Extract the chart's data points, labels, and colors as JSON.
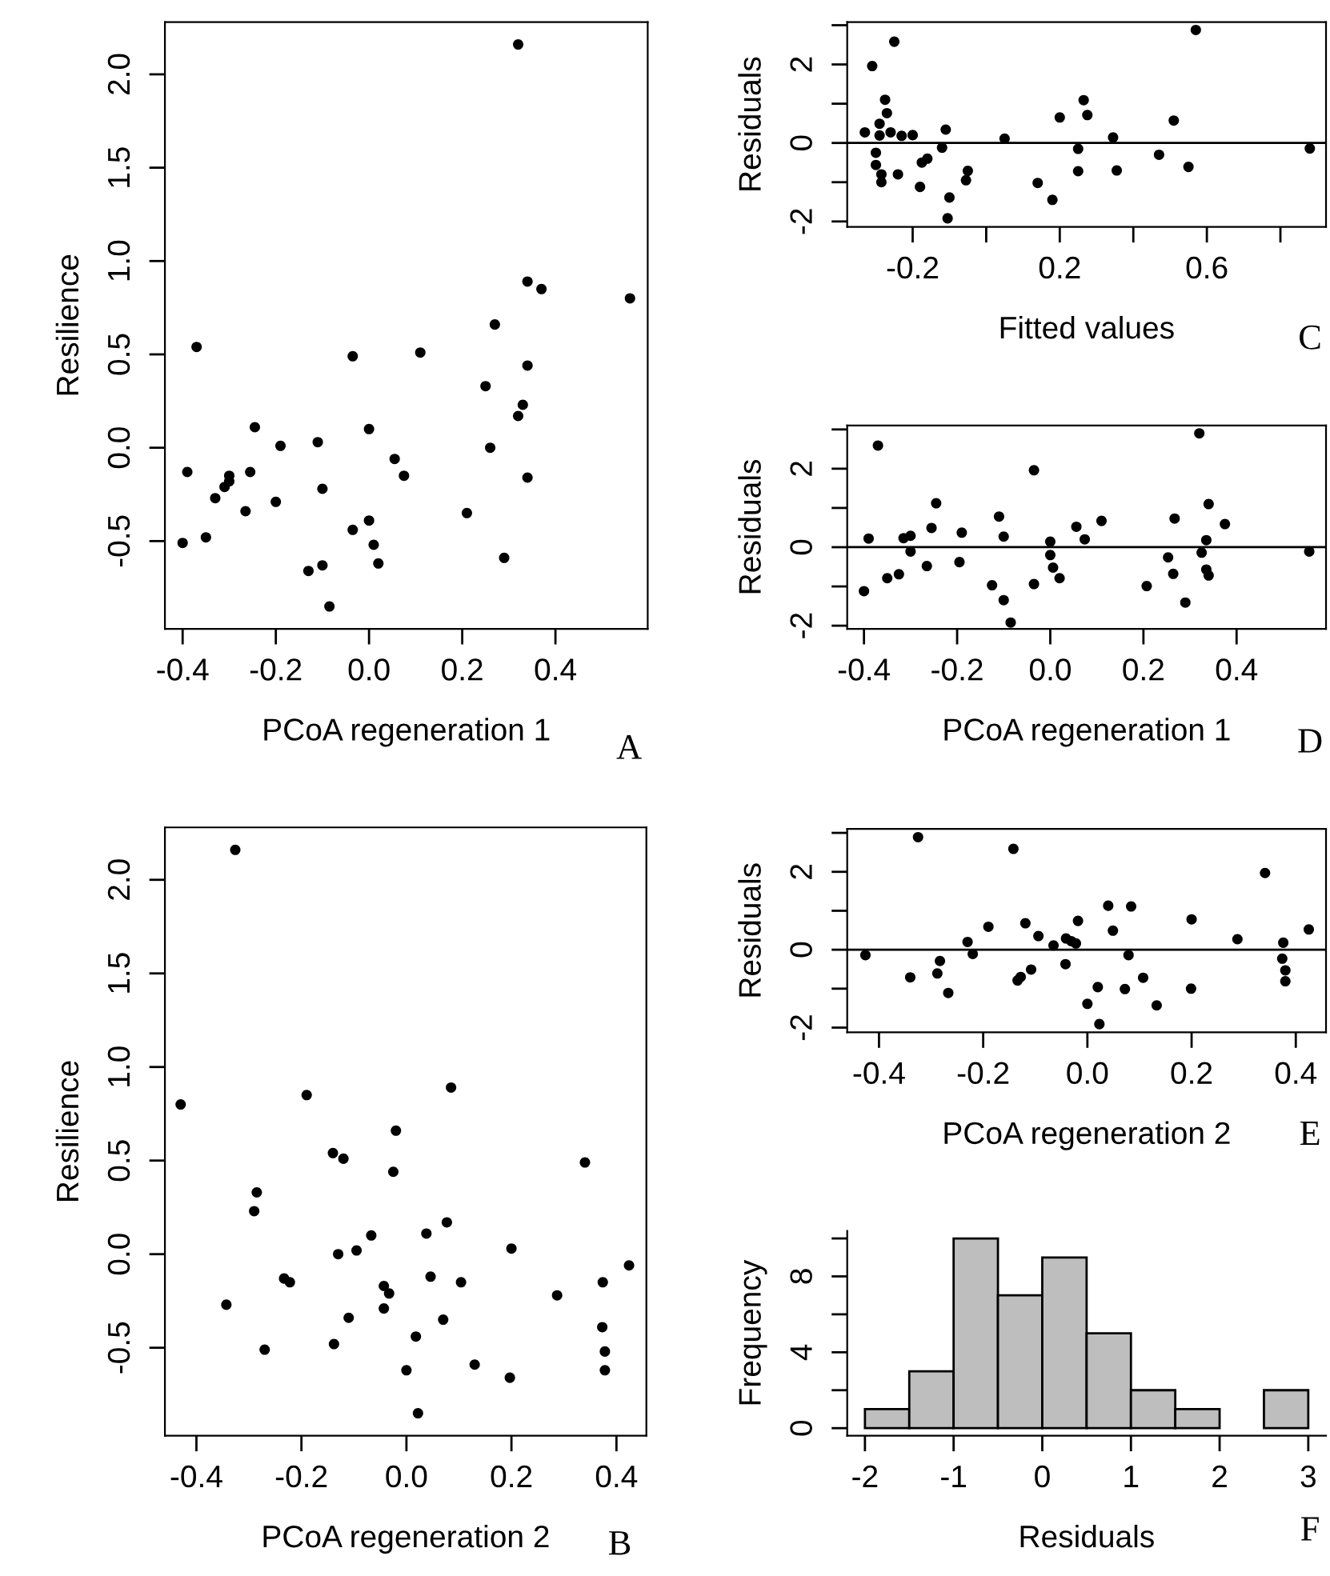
{
  "chart_data": [
    {
      "type": "scatter",
      "xlabel": "PCoA regeneration 1",
      "ylabel": "Resilience",
      "color": "#000000",
      "marker": "circle",
      "annotations": [
        "A"
      ],
      "x": [
        0.32,
        0.34,
        0.37,
        0.56,
        0.27,
        0.34,
        0.25,
        0.33,
        0.32,
        0.26,
        0.34,
        0.21,
        0.29,
        -0.37,
        -0.035,
        0.11,
        -0.39,
        -0.4,
        -0.35,
        -0.33,
        -0.31,
        -0.3,
        -0.3,
        -0.255,
        -0.245,
        -0.265,
        -0.2,
        -0.19,
        -0.11,
        -0.1,
        -0.13,
        -0.1,
        -0.085,
        -0.035,
        0.0,
        0.0,
        0.01,
        0.02,
        0.055,
        0.075
      ],
      "values": [
        2.16,
        0.89,
        0.85,
        0.8,
        0.66,
        0.44,
        0.33,
        0.23,
        0.17,
        0.0,
        -0.16,
        -0.35,
        -0.59,
        0.54,
        0.49,
        0.51,
        -0.13,
        -0.51,
        -0.48,
        -0.27,
        -0.21,
        -0.18,
        -0.15,
        -0.13,
        0.11,
        -0.34,
        -0.29,
        0.01,
        0.03,
        -0.22,
        -0.66,
        -0.63,
        -0.85,
        -0.44,
        -0.39,
        0.1,
        -0.52,
        -0.62,
        -0.06,
        -0.15
      ],
      "xlim": [
        -0.438,
        0.598
      ],
      "ylim": [
        -0.97,
        2.28
      ],
      "xticks": [
        -0.4,
        -0.2,
        {
          "value": 0,
          "label": "0.0"
        },
        0.2,
        0.4
      ],
      "yticks": [
        -0.5,
        {
          "value": 0,
          "label": "0.0"
        },
        0.5,
        {
          "value": 1,
          "label": "1.0"
        },
        1.5,
        {
          "value": 2,
          "label": "2.0"
        }
      ]
    },
    {
      "type": "scatter",
      "xlabel": "PCoA regeneration 2",
      "ylabel": "Resilience",
      "color": "#000000",
      "marker": "circle",
      "annotations": [
        "B"
      ],
      "x": [
        -0.326,
        -0.43,
        -0.19,
        0.085,
        -0.02,
        -0.14,
        -0.12,
        -0.025,
        0.34,
        -0.285,
        -0.29,
        0.077,
        -0.067,
        0.038,
        -0.13,
        -0.095,
        0.2,
        0.424,
        -0.233,
        -0.222,
        -0.043,
        -0.033,
        0.046,
        0.104,
        0.374,
        0.287,
        -0.343,
        -0.043,
        -0.11,
        0.07,
        0.373,
        -0.27,
        -0.138,
        0.018,
        0.378,
        0.13,
        0.0,
        0.197,
        0.378,
        0.022
      ],
      "values": [
        2.16,
        0.8,
        0.85,
        0.89,
        0.66,
        0.54,
        0.51,
        0.44,
        0.49,
        0.33,
        0.23,
        0.17,
        0.1,
        0.11,
        0.0,
        0.02,
        0.03,
        -0.06,
        -0.13,
        -0.15,
        -0.17,
        -0.21,
        -0.12,
        -0.15,
        -0.15,
        -0.22,
        -0.27,
        -0.29,
        -0.34,
        -0.35,
        -0.39,
        -0.51,
        -0.48,
        -0.44,
        -0.52,
        -0.59,
        -0.62,
        -0.66,
        -0.62,
        -0.85
      ],
      "xlim": [
        -0.46,
        0.457
      ],
      "ylim": [
        -0.97,
        2.28
      ],
      "xticks": [
        -0.4,
        -0.2,
        {
          "value": 0,
          "label": "0.0"
        },
        0.2,
        0.4
      ],
      "yticks": [
        -0.5,
        {
          "value": 0,
          "label": "0.0"
        },
        0.5,
        {
          "value": 1,
          "label": "1.0"
        },
        1.5,
        {
          "value": 2,
          "label": "2.0"
        }
      ]
    },
    {
      "type": "scatter",
      "xlabel": "Fitted values",
      "ylabel": "Residuals",
      "color": "#000000",
      "marker": "circle",
      "annotations": [
        "C"
      ],
      "ref_lines": [
        {
          "axis": "y",
          "value": 0,
          "label": null,
          "color": "#000000"
        }
      ],
      "x": [
        -0.33,
        -0.31,
        -0.25,
        -0.3,
        -0.3,
        -0.29,
        -0.285,
        -0.285,
        -0.29,
        -0.275,
        -0.27,
        -0.26,
        -0.23,
        -0.24,
        -0.2,
        -0.18,
        -0.175,
        -0.16,
        -0.12,
        -0.11,
        -0.1,
        -0.105,
        -0.055,
        -0.05,
        0.05,
        0.14,
        0.18,
        0.2,
        0.25,
        0.25,
        0.265,
        0.275,
        0.345,
        0.355,
        0.47,
        0.51,
        0.55,
        0.57,
        0.88
      ],
      "values": [
        0.27,
        1.96,
        2.58,
        -0.25,
        -0.56,
        0.49,
        -0.8,
        -1.0,
        0.19,
        1.1,
        0.76,
        0.27,
        0.18,
        -0.8,
        0.2,
        -1.12,
        -0.5,
        -0.4,
        -0.12,
        0.34,
        -1.39,
        -1.92,
        -0.95,
        -0.71,
        0.11,
        -1.02,
        -1.45,
        0.65,
        -0.15,
        -0.72,
        1.09,
        0.71,
        0.14,
        -0.7,
        -0.3,
        0.57,
        -0.61,
        2.88,
        -0.14
      ],
      "xlim": [
        -0.378,
        0.924
      ],
      "ylim": [
        -2.14,
        3.08
      ],
      "xticks": [
        -0.2,
        {
          "value": 0,
          "label": null
        },
        0.2,
        {
          "value": 0.4,
          "label": null
        },
        0.6,
        {
          "value": 0.8,
          "label": null
        }
      ],
      "yticks": [
        -2,
        {
          "value": -1,
          "label": null
        },
        0,
        {
          "value": 1,
          "label": null
        },
        2,
        {
          "value": 3,
          "label": null
        }
      ]
    },
    {
      "type": "scatter",
      "xlabel": "PCoA regeneration 1",
      "ylabel": "Residuals",
      "color": "#000000",
      "marker": "circle",
      "annotations": [
        "D"
      ],
      "ref_lines": [
        {
          "axis": "y",
          "value": 0,
          "label": null,
          "color": "#000000"
        }
      ],
      "x": [
        -0.4,
        -0.39,
        -0.37,
        -0.35,
        -0.325,
        -0.315,
        -0.3,
        -0.3,
        -0.265,
        -0.255,
        -0.245,
        -0.195,
        -0.19,
        -0.125,
        -0.11,
        -0.1,
        -0.1,
        -0.085,
        -0.035,
        -0.035,
        0.0,
        0.0,
        0.006,
        0.02,
        0.056,
        0.074,
        0.11,
        0.207,
        0.253,
        0.264,
        0.267,
        0.29,
        0.32,
        0.325,
        0.335,
        0.335,
        0.34,
        0.34,
        0.375,
        0.556
      ],
      "values": [
        -1.12,
        0.22,
        2.59,
        -0.79,
        -0.69,
        0.23,
        0.29,
        -0.11,
        -0.48,
        0.49,
        1.12,
        -0.38,
        0.37,
        -0.97,
        0.78,
        0.27,
        -1.35,
        -1.92,
        1.96,
        -0.94,
        0.14,
        -0.2,
        -0.52,
        -0.79,
        0.52,
        0.2,
        0.67,
        -0.99,
        -0.26,
        -0.68,
        0.73,
        -1.41,
        2.9,
        -0.14,
        0.18,
        -0.57,
        -0.72,
        1.1,
        0.59,
        -0.11
      ],
      "xlim": [
        -0.436,
        0.592
      ],
      "ylim": [
        -2.08,
        3.1
      ],
      "xticks": [
        -0.4,
        -0.2,
        {
          "value": 0,
          "label": "0.0"
        },
        0.2,
        0.4
      ],
      "yticks": [
        -2,
        {
          "value": -1,
          "label": null
        },
        0,
        {
          "value": 1,
          "label": null
        },
        2,
        {
          "value": 3,
          "label": null
        }
      ]
    },
    {
      "type": "scatter",
      "xlabel": "PCoA regeneration 2",
      "ylabel": "Residuals",
      "color": "#000000",
      "marker": "circle",
      "annotations": [
        "E"
      ],
      "ref_lines": [
        {
          "axis": "y",
          "value": 0,
          "label": null,
          "color": "#000000"
        }
      ],
      "x": [
        -0.426,
        -0.325,
        -0.34,
        -0.288,
        -0.283,
        -0.267,
        -0.23,
        -0.22,
        -0.19,
        -0.142,
        -0.134,
        -0.128,
        -0.119,
        -0.108,
        -0.094,
        -0.065,
        -0.042,
        -0.041,
        -0.031,
        -0.022,
        -0.018,
        0.0,
        0.02,
        0.023,
        0.04,
        0.049,
        0.072,
        0.079,
        0.084,
        0.107,
        0.133,
        0.199,
        0.2,
        0.288,
        0.341,
        0.376,
        0.374,
        0.38,
        0.38,
        0.425
      ],
      "values": [
        -0.14,
        2.89,
        -0.71,
        -0.61,
        -0.29,
        -1.11,
        0.2,
        -0.11,
        0.59,
        2.59,
        -0.79,
        -0.7,
        0.68,
        -0.51,
        0.35,
        0.11,
        -0.37,
        0.29,
        0.22,
        0.16,
        0.74,
        -1.39,
        -0.96,
        -1.91,
        1.13,
        0.49,
        -1.01,
        -0.14,
        1.11,
        -0.72,
        -1.43,
        -1.0,
        0.78,
        0.27,
        1.97,
        0.18,
        -0.23,
        -0.53,
        -0.81,
        0.52
      ],
      "xlim": [
        -0.461,
        0.458
      ],
      "ylim": [
        -2.12,
        3.1
      ],
      "xticks": [
        -0.4,
        -0.2,
        {
          "value": 0,
          "label": "0.0"
        },
        0.2,
        0.4
      ],
      "yticks": [
        -2,
        {
          "value": -1,
          "label": null
        },
        0,
        {
          "value": 1,
          "label": null
        },
        2,
        {
          "value": 3,
          "label": null
        }
      ]
    },
    {
      "type": "histogram",
      "xlabel": "Residuals",
      "ylabel": "Frequency",
      "color": "#bebebe",
      "annotations": [
        "F"
      ],
      "bins": [
        -2,
        -1.5,
        -1,
        -0.5,
        0,
        0.5,
        1,
        1.5,
        2,
        2.5,
        3
      ],
      "values": [
        1,
        3,
        10,
        7,
        9,
        5,
        2,
        1,
        0,
        2
      ],
      "xlim": [
        -2.2,
        3.2
      ],
      "ylim": [
        -0.4,
        10.4
      ],
      "xticks": [
        -2,
        -1,
        0,
        1,
        2,
        3
      ],
      "yticks": [
        0,
        {
          "value": 2,
          "label": null
        },
        4,
        {
          "value": 6,
          "label": null
        },
        8,
        {
          "value": 10,
          "label": null
        }
      ]
    }
  ]
}
